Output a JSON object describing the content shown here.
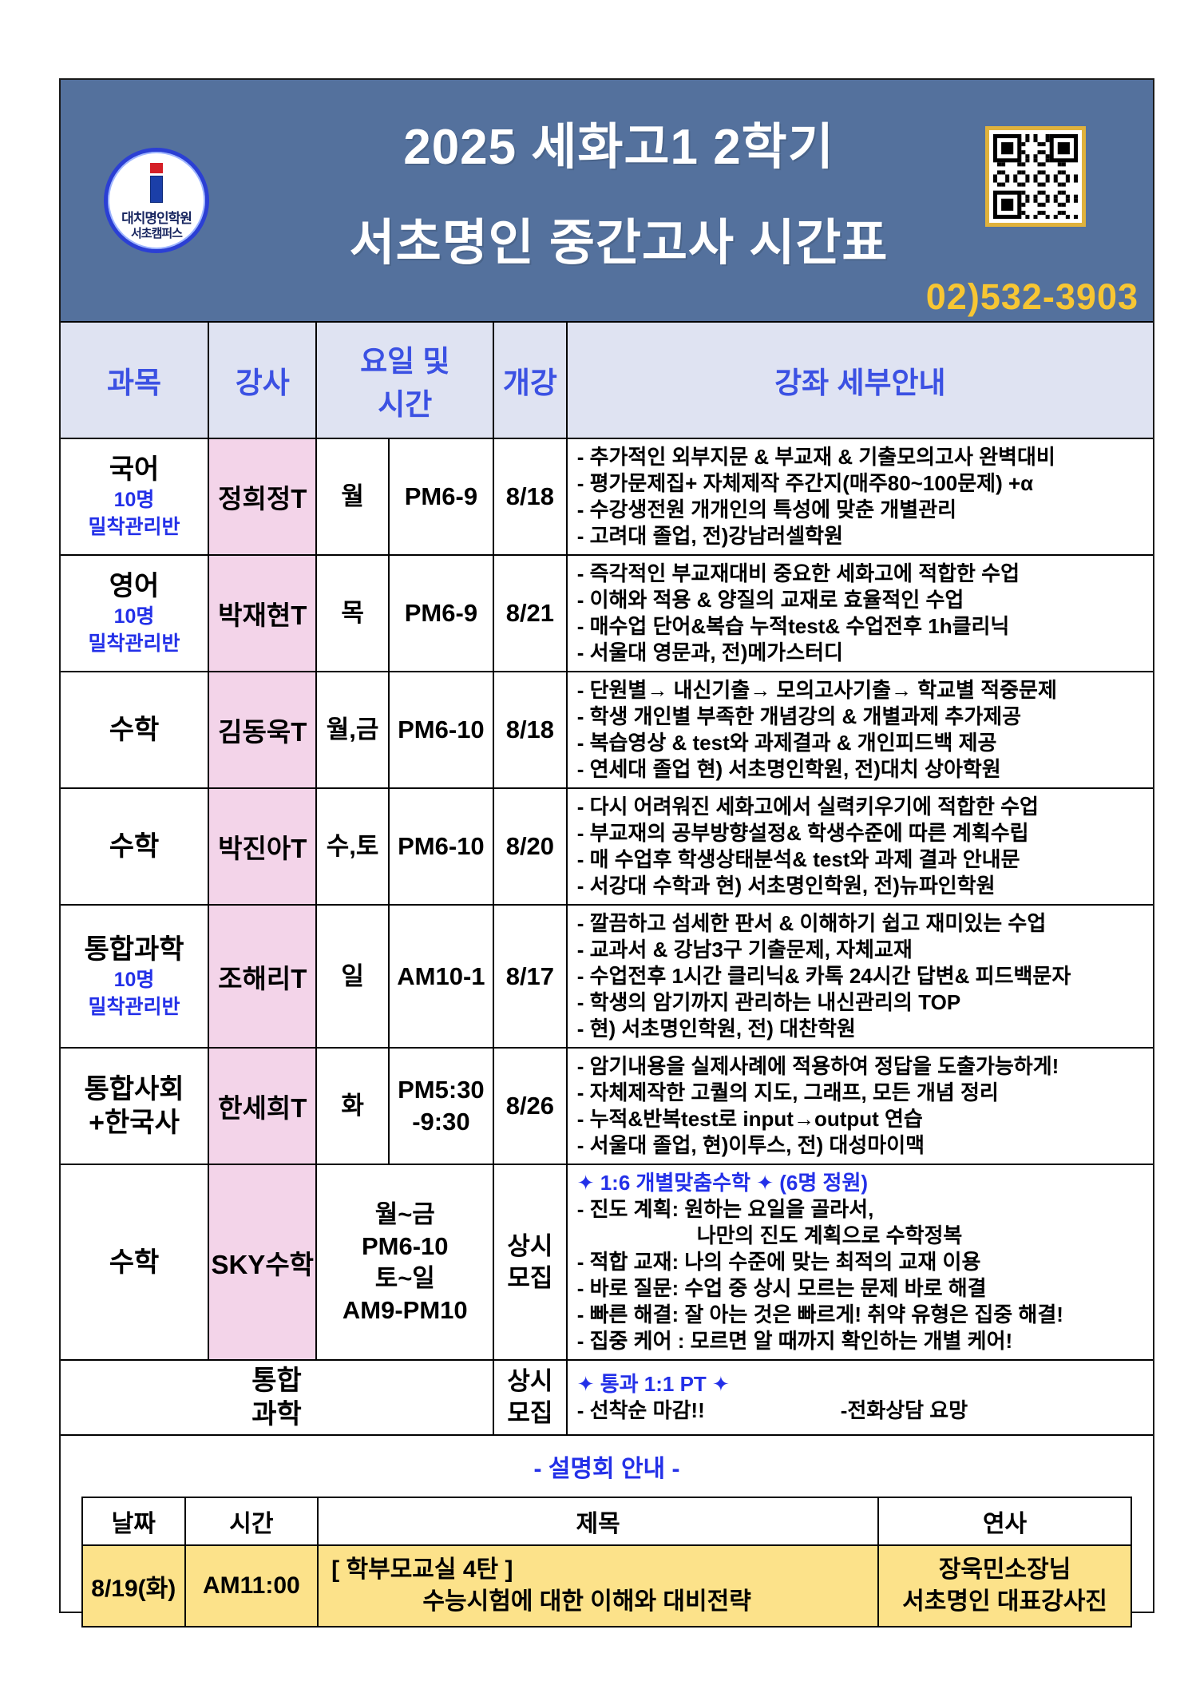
{
  "banner": {
    "logo": {
      "academy": "대치명인학원",
      "campus": "서초캠퍼스"
    },
    "title_line1": "2025 세화고1  2학기",
    "title_line2": "서초명인 중간고사 시간표",
    "phone": "02)532-3903"
  },
  "table": {
    "headers": {
      "subject": "과목",
      "teacher": "강사",
      "daytime_line1": "요일 및",
      "daytime_line2": "시간",
      "start": "개강",
      "details": "강좌 세부안내"
    },
    "rows": [
      {
        "subject": [
          "국어"
        ],
        "note": [
          "10명",
          "밀착관리반"
        ],
        "teacher": "정희정T",
        "day": [
          "월"
        ],
        "time": [
          "PM6-9"
        ],
        "start": [
          "8/18"
        ],
        "details": [
          {
            "t": "- 추가적인 외부지문 & 부교재 & 기출모의고사 완벽대비"
          },
          {
            "t": "- 평가문제집+ 자체제작 주간지(매주80~100문제) +α"
          },
          {
            "t": "- 수강생전원 개개인의 특성에 맞춘 개별관리"
          },
          {
            "t": "- 고려대 졸업, 전)강남러셀학원"
          }
        ]
      },
      {
        "subject": [
          "영어"
        ],
        "note": [
          "10명",
          "밀착관리반"
        ],
        "teacher": "박재현T",
        "day": [
          "목"
        ],
        "time": [
          "PM6-9"
        ],
        "start": [
          "8/21"
        ],
        "details": [
          {
            "t": "- 즉각적인 부교재대비 중요한 세화고에 적합한 수업"
          },
          {
            "t": "- 이해와 적용 & 양질의 교재로 효율적인 수업"
          },
          {
            "t": "- 매수업 단어&복습 누적test& 수업전후 1h클리닉"
          },
          {
            "t": "- 서울대 영문과, 전)메가스터디"
          }
        ]
      },
      {
        "subject": [
          "수학"
        ],
        "teacher": "김동욱T",
        "day": [
          "월,금"
        ],
        "time": [
          "PM6-10"
        ],
        "start": [
          "8/18"
        ],
        "details": [
          {
            "t": "- 단원별→ 내신기출→ 모의고사기출→ 학교별 적중문제"
          },
          {
            "t": "- 학생 개인별 부족한 개념강의 & 개별과제 추가제공"
          },
          {
            "t": "- 복습영상 & test와 과제결과 & 개인피드백 제공"
          },
          {
            "t": "- 연세대 졸업  현) 서초명인학원, 전)대치 상아학원"
          }
        ]
      },
      {
        "subject": [
          "수학"
        ],
        "teacher": "박진아T",
        "day": [
          "수,토"
        ],
        "time": [
          "PM6-10"
        ],
        "start": [
          "8/20"
        ],
        "details": [
          {
            "t": "- 다시 어려워진 세화고에서 실력키우기에 적합한 수업"
          },
          {
            "t": "- 부교재의 공부방향설정& 학생수준에 따른 계획수립"
          },
          {
            "t": "- 매 수업후 학생상태분석& test와 과제 결과 안내문"
          },
          {
            "t": "- 서강대 수학과 현) 서초명인학원, 전)뉴파인학원"
          }
        ]
      },
      {
        "subject": [
          "통합과학"
        ],
        "note": [
          "10명",
          "밀착관리반"
        ],
        "teacher": "조해리T",
        "day": [
          "일"
        ],
        "time": [
          "AM10-1"
        ],
        "start": [
          "8/17"
        ],
        "details": [
          {
            "t": "- 깔끔하고 섬세한 판서 &  이해하기 쉽고 재미있는 수업"
          },
          {
            "t": "- 교과서 & 강남3구 기출문제, 자체교재"
          },
          {
            "t": "- 수업전후 1시간 클리닉& 카톡 24시간 답변& 피드백문자"
          },
          {
            "t": "- 학생의 암기까지 관리하는 내신관리의 TOP"
          },
          {
            "t": "- 현) 서초명인학원, 전) 대찬학원"
          }
        ]
      },
      {
        "subject": [
          "통합사회",
          "+한국사"
        ],
        "teacher": "한세희T",
        "day": [
          "화"
        ],
        "time": [
          "PM5:30",
          "-9:30"
        ],
        "start": [
          "8/26"
        ],
        "details": [
          {
            "t": "- 암기내용을 실제사례에 적용하여 정답을 도출가능하게!"
          },
          {
            "t": "- 자체제작한 고퀄의 지도, 그래프, 모든 개념 정리"
          },
          {
            "t": "- 누적&반복test로 input→output 연습"
          },
          {
            "t": "- 서울대 졸업, 현)이투스, 전) 대성마이맥"
          }
        ]
      },
      {
        "subject": [
          "수학"
        ],
        "merge": "daytime",
        "teacher": "SKY수학",
        "daytime": [
          "월~금",
          "PM6-10",
          "토~일",
          "AM9-PM10"
        ],
        "start": [
          "상시",
          "모집"
        ],
        "details": [
          {
            "t": "✦ 1:6 개별맞춤수학 ✦  (6명 정원)",
            "s": "blue"
          },
          {
            "t": "- 진도 계획: 원하는 요일을 골라서,"
          },
          {
            "t": "나만의 진도 계획으로 수학정복",
            "i": true
          },
          {
            "t": "- 적합 교재: 나의 수준에 맞는 최적의 교재 이용"
          },
          {
            "t": "- 바로 질문: 수업 중 상시 모르는 문제 바로 해결"
          },
          {
            "t": "- 빠른 해결: 잘 아는 것은 빠르게! 취약 유형은 집중 해결!"
          },
          {
            "t": "- 집중 케어 : 모르면 알 때까지 확인하는 개별 케어!"
          }
        ]
      },
      {
        "subject": [
          "통합",
          "과학"
        ],
        "merge": "subject",
        "start": [
          "상시",
          "모집"
        ],
        "details": [
          {
            "t": "✦ 통과 1:1 PT ✦",
            "s": "blue"
          },
          {
            "t": "- 선착순 마감!!",
            "t2": "-전화상담 요망"
          }
        ]
      }
    ]
  },
  "seminar": {
    "title": "- 설명회 안내 -",
    "headers": {
      "date": "날짜",
      "time": "시간",
      "subject": "제목",
      "speaker": "연사"
    },
    "row": {
      "date": "8/19(화)",
      "time": "AM11:00",
      "subject_lines": [
        "[ 학부모교실 4탄 ]",
        "수능시험에 대한 이해와 대비전략"
      ],
      "speaker_lines": [
        "장욱민소장님",
        "서초명인 대표강사진"
      ]
    }
  },
  "colors": {
    "banner_blue": "#54719d",
    "header_lavender": "#dfe3f2",
    "teacher_pink": "#f3d4e9",
    "highlight_yellow": "#fce28a",
    "accent_blue_text": "#2330e8",
    "phone_gold": "#f7c633"
  }
}
